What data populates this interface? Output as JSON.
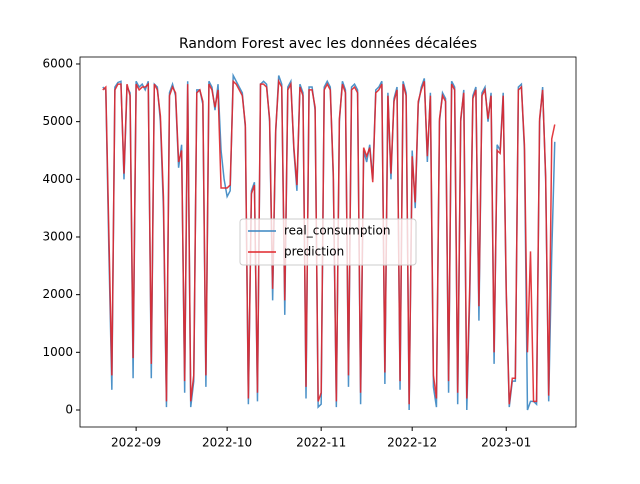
{
  "chart_data": {
    "type": "line",
    "title": "Random Forest avec les données décalées",
    "x": [
      19225,
      19226,
      19227,
      19228,
      19229,
      19230,
      19231,
      19232,
      19233,
      19234,
      19235,
      19236,
      19237,
      19238,
      19239,
      19240,
      19241,
      19242,
      19243,
      19244,
      19245,
      19246,
      19247,
      19248,
      19249,
      19250,
      19251,
      19252,
      19253,
      19254,
      19255,
      19256,
      19257,
      19258,
      19259,
      19260,
      19261,
      19262,
      19263,
      19264,
      19265,
      19266,
      19267,
      19268,
      19269,
      19270,
      19271,
      19272,
      19273,
      19274,
      19275,
      19276,
      19277,
      19278,
      19279,
      19280,
      19281,
      19282,
      19283,
      19284,
      19285,
      19286,
      19287,
      19288,
      19289,
      19290,
      19291,
      19292,
      19293,
      19294,
      19295,
      19296,
      19297,
      19298,
      19299,
      19300,
      19301,
      19302,
      19303,
      19304,
      19305,
      19306,
      19307,
      19308,
      19309,
      19310,
      19311,
      19312,
      19313,
      19314,
      19315,
      19316,
      19317,
      19318,
      19319,
      19320,
      19321,
      19322,
      19323,
      19324,
      19325,
      19326,
      19327,
      19328,
      19329,
      19330,
      19331,
      19332,
      19333,
      19334,
      19335,
      19336,
      19337,
      19338,
      19339,
      19340,
      19341,
      19342,
      19343,
      19344,
      19345,
      19346,
      19347,
      19348,
      19349,
      19350,
      19351,
      19352,
      19353,
      19354,
      19355,
      19356,
      19357,
      19358,
      19359,
      19360,
      19361,
      19362,
      19363,
      19364,
      19365,
      19366,
      19367,
      19368,
      19369,
      19370,
      19371,
      19372,
      19373,
      19374
    ],
    "series": [
      {
        "name": "real_consumption",
        "color": "#3a86c2",
        "values": [
          5600,
          5550,
          2800,
          350,
          5600,
          5680,
          5700,
          4000,
          5600,
          5500,
          550,
          5700,
          5600,
          5650,
          5550,
          5700,
          550,
          5650,
          5600,
          5000,
          3500,
          50,
          5500,
          5650,
          5450,
          4200,
          4600,
          300,
          5700,
          50,
          500,
          5550,
          5550,
          5300,
          400,
          5700,
          5600,
          5200,
          5650,
          4500,
          4000,
          3700,
          3800,
          5800,
          5700,
          5600,
          5500,
          4900,
          100,
          3800,
          3950,
          150,
          5650,
          5700,
          5650,
          5000,
          1900,
          4800,
          5800,
          5650,
          1650,
          5600,
          5700,
          4500,
          3800,
          5650,
          5500,
          200,
          5600,
          5600,
          5200,
          50,
          100,
          5600,
          5700,
          5600,
          4000,
          50,
          5000,
          5700,
          5550,
          400,
          5600,
          5650,
          5550,
          100,
          4500,
          4300,
          4600,
          4000,
          5550,
          5600,
          5700,
          450,
          5500,
          4000,
          5400,
          5600,
          350,
          5700,
          5500,
          0,
          4500,
          3500,
          5300,
          5600,
          5750,
          4300,
          5500,
          400,
          50,
          5000,
          5500,
          5400,
          300,
          5700,
          5600,
          100,
          5000,
          5550,
          0,
          2000,
          5450,
          5600,
          1550,
          5500,
          5600,
          5000,
          5500,
          800,
          4600,
          4500,
          5500,
          2000,
          50,
          500,
          500,
          5600,
          5650,
          4500,
          0,
          150,
          150,
          100,
          5000,
          5600,
          4000,
          150,
          2700,
          4650
        ]
      },
      {
        "name": "prediction",
        "color": "#e0262b",
        "values": [
          5550,
          5600,
          3100,
          600,
          5550,
          5650,
          5650,
          4100,
          5650,
          5450,
          900,
          5650,
          5550,
          5600,
          5600,
          5650,
          800,
          5650,
          5550,
          5100,
          3700,
          150,
          5450,
          5600,
          5500,
          4300,
          4500,
          500,
          5650,
          150,
          600,
          5500,
          5550,
          5350,
          600,
          5650,
          5550,
          5250,
          5550,
          3850,
          3850,
          3850,
          3900,
          5700,
          5650,
          5550,
          5450,
          4950,
          200,
          3750,
          3900,
          300,
          5650,
          5650,
          5600,
          5050,
          2100,
          4850,
          5700,
          5600,
          1900,
          5550,
          5650,
          4550,
          3900,
          5600,
          5450,
          400,
          5550,
          5550,
          5250,
          150,
          300,
          5550,
          5650,
          5550,
          4100,
          150,
          5050,
          5650,
          5500,
          600,
          5550,
          5600,
          5500,
          300,
          4550,
          4400,
          4550,
          3950,
          5500,
          5550,
          5650,
          650,
          5450,
          4100,
          5350,
          5550,
          500,
          5650,
          5450,
          100,
          4400,
          3600,
          5350,
          5550,
          5700,
          4400,
          5450,
          600,
          200,
          5050,
          5450,
          5350,
          500,
          5650,
          5550,
          300,
          5050,
          5500,
          200,
          2200,
          5400,
          5550,
          1800,
          5450,
          5550,
          5050,
          5450,
          1000,
          4500,
          4450,
          5450,
          2100,
          100,
          550,
          550,
          5550,
          5600,
          4600,
          1000,
          2750,
          150,
          150,
          5050,
          5550,
          4050,
          250,
          4700,
          4950
        ]
      }
    ],
    "xlim": [
      19217.5,
      19381
    ],
    "xticks": [
      {
        "value": 19236,
        "label": "2022-09"
      },
      {
        "value": 19266,
        "label": "2022-10"
      },
      {
        "value": 19297,
        "label": "2022-11"
      },
      {
        "value": 19327,
        "label": "2022-12"
      },
      {
        "value": 19358,
        "label": "2023-01"
      }
    ],
    "ylim": [
      -295,
      6121
    ],
    "yticks": [
      0,
      1000,
      2000,
      3000,
      4000,
      5000,
      6000
    ],
    "legend": "center"
  }
}
